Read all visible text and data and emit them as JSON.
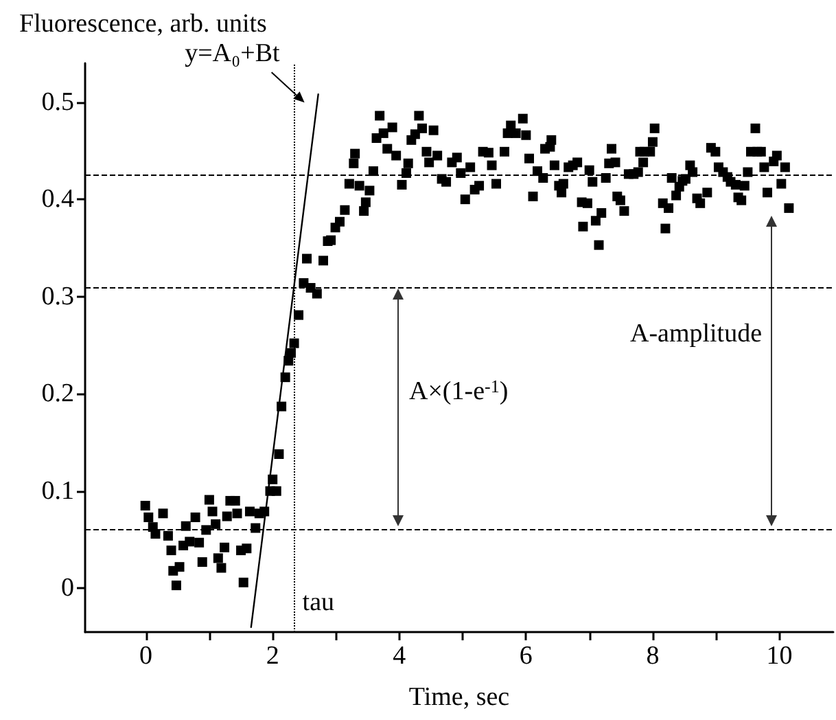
{
  "chart_data": {
    "type": "scatter",
    "xlabel": "Time, sec",
    "ylabel": "Fluorescence, arb. units",
    "xlim": [
      -0.96,
      10.85
    ],
    "ylim": [
      -0.045,
      0.54
    ],
    "xticks": [
      0,
      {
        "value": 1,
        "label": null
      },
      2,
      {
        "value": 3,
        "label": null
      },
      4,
      {
        "value": 5,
        "label": null
      },
      6,
      {
        "value": 7,
        "label": null
      },
      8,
      {
        "value": 9,
        "label": null
      },
      10
    ],
    "yticks": [
      0,
      0.1,
      0.2,
      0.3,
      0.4,
      0.5
    ],
    "grid": false,
    "legend": false,
    "marker": "square",
    "series": [
      {
        "type": "scatter",
        "color": "#000000",
        "x": [
          -0.01,
          0.04,
          0.11,
          0.15,
          0.27,
          0.35,
          0.4,
          0.43,
          0.53,
          0.48,
          0.59,
          0.63,
          0.69,
          0.78,
          0.84,
          0.89,
          0.95,
          1.0,
          1.05,
          1.1,
          1.14,
          1.19,
          1.24,
          1.28,
          1.33,
          1.41,
          1.44,
          1.5,
          1.59,
          1.54,
          1.64,
          1.73,
          1.79,
          1.87,
          1.96,
          2.0,
          2.06,
          2.1,
          2.14,
          2.2,
          2.25,
          2.29,
          2.34,
          2.41,
          2.49,
          2.6,
          2.7,
          2.54,
          2.8,
          2.87,
          2.92,
          2.99,
          3.06,
          3.14,
          3.21,
          3.3,
          3.28,
          3.37,
          3.47,
          3.44,
          3.53,
          3.59,
          3.64,
          3.69,
          3.75,
          3.81,
          3.89,
          3.95,
          4.04,
          4.11,
          4.14,
          4.19,
          4.25,
          4.31,
          4.36,
          4.43,
          4.47,
          4.54,
          4.6,
          4.67,
          4.74,
          4.83,
          4.91,
          4.97,
          5.04,
          5.12,
          5.19,
          5.26,
          5.32,
          5.41,
          5.46,
          5.53,
          5.66,
          5.71,
          5.76,
          5.84,
          5.95,
          6.0,
          6.05,
          6.11,
          6.18,
          6.27,
          6.3,
          6.38,
          6.4,
          6.45,
          6.52,
          6.56,
          6.59,
          6.67,
          6.74,
          6.81,
          6.88,
          6.97,
          6.9,
          7.0,
          7.05,
          7.1,
          7.15,
          7.19,
          7.26,
          7.31,
          7.35,
          7.41,
          7.44,
          7.49,
          7.55,
          7.62,
          7.7,
          7.77,
          7.8,
          7.85,
          7.87,
          7.96,
          8.0,
          8.03,
          8.16,
          8.2,
          8.25,
          8.3,
          8.37,
          8.42,
          8.47,
          8.52,
          8.59,
          8.63,
          8.7,
          8.75,
          8.86,
          8.92,
          8.99,
          9.04,
          9.11,
          9.18,
          9.23,
          9.31,
          9.35,
          9.4,
          9.45,
          9.5,
          9.55,
          9.62,
          9.65,
          9.71,
          9.76,
          9.81,
          9.91,
          9.96,
          10.03,
          10.09,
          10.15
        ],
        "values": [
          0.085,
          0.073,
          0.063,
          0.056,
          0.077,
          0.054,
          0.039,
          0.018,
          0.022,
          0.003,
          0.044,
          0.064,
          0.048,
          0.073,
          0.047,
          0.027,
          0.06,
          0.091,
          0.079,
          0.066,
          0.031,
          0.021,
          0.042,
          0.074,
          0.09,
          0.09,
          0.077,
          0.039,
          0.041,
          0.006,
          0.079,
          0.062,
          0.077,
          0.079,
          0.1,
          0.112,
          0.1,
          0.138,
          0.187,
          0.217,
          0.234,
          0.242,
          0.252,
          0.281,
          0.314,
          0.309,
          0.303,
          0.339,
          0.337,
          0.357,
          0.358,
          0.371,
          0.377,
          0.389,
          0.416,
          0.447,
          0.437,
          0.414,
          0.397,
          0.388,
          0.409,
          0.429,
          0.463,
          0.486,
          0.468,
          0.452,
          0.474,
          0.445,
          0.415,
          0.427,
          0.437,
          0.461,
          0.467,
          0.486,
          0.473,
          0.449,
          0.438,
          0.471,
          0.445,
          0.421,
          0.418,
          0.438,
          0.443,
          0.427,
          0.4,
          0.433,
          0.41,
          0.414,
          0.449,
          0.448,
          0.435,
          0.416,
          0.449,
          0.468,
          0.476,
          0.468,
          0.483,
          0.466,
          0.442,
          0.403,
          0.429,
          0.422,
          0.452,
          0.454,
          0.461,
          0.435,
          0.414,
          0.407,
          0.416,
          0.433,
          0.435,
          0.438,
          0.397,
          0.396,
          0.372,
          0.43,
          0.418,
          0.378,
          0.353,
          0.386,
          0.422,
          0.437,
          0.452,
          0.438,
          0.403,
          0.399,
          0.388,
          0.426,
          0.426,
          0.428,
          0.449,
          0.438,
          0.449,
          0.449,
          0.459,
          0.473,
          0.396,
          0.37,
          0.391,
          0.422,
          0.404,
          0.413,
          0.419,
          0.421,
          0.435,
          0.428,
          0.401,
          0.396,
          0.407,
          0.453,
          0.449,
          0.433,
          0.428,
          0.423,
          0.418,
          0.415,
          0.402,
          0.399,
          0.414,
          0.428,
          0.449,
          0.473,
          0.449,
          0.449,
          0.433,
          0.407,
          0.439,
          0.445,
          0.416,
          0.433,
          0.391
        ]
      },
      {
        "type": "line",
        "name": "y=A₀+Bt",
        "color": "#000000",
        "marker": "none",
        "line_style": "solid",
        "x": [
          1.66,
          2.72
        ],
        "values": [
          -0.04,
          0.508
        ]
      }
    ],
    "ref_lines": [
      {
        "axis": "y",
        "value": 0.425,
        "line_style": "dashed",
        "color": "#000000"
      },
      {
        "axis": "y",
        "value": 0.31,
        "line_style": "dashed",
        "color": "#000000"
      },
      {
        "axis": "y",
        "value": 0.061,
        "line_style": "dashed",
        "color": "#000000"
      },
      {
        "axis": "x",
        "value": 2.34,
        "line_style": "dotted",
        "color": "#000000",
        "label": "tau"
      }
    ],
    "annotations": [
      "A×(1-e$^{-1}$)",
      "A-amplitude"
    ]
  }
}
